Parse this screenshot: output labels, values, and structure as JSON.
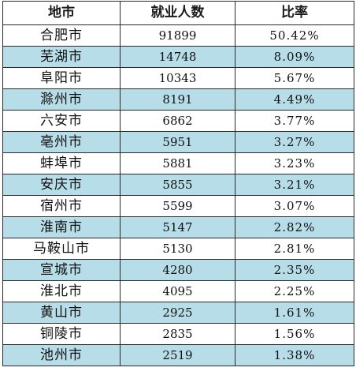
{
  "colors": {
    "header_bg": "#ffffff",
    "odd_row_bg": "#ffffff",
    "even_row_bg": "#b7dde8",
    "border": "#2a2a2a"
  },
  "header": {
    "city": "地市",
    "employed": "就业人数",
    "ratio": "比率"
  },
  "rows": [
    {
      "city": "合肥市",
      "employed": "91899",
      "ratio": "50.42%"
    },
    {
      "city": "芜湖市",
      "employed": "14748",
      "ratio": "8.09%"
    },
    {
      "city": "阜阳市",
      "employed": "10343",
      "ratio": "5.67%"
    },
    {
      "city": "滁州市",
      "employed": "8191",
      "ratio": "4.49%"
    },
    {
      "city": "六安市",
      "employed": "6862",
      "ratio": "3.77%"
    },
    {
      "city": "亳州市",
      "employed": "5951",
      "ratio": "3.27%"
    },
    {
      "city": "蚌埠市",
      "employed": "5881",
      "ratio": "3.23%"
    },
    {
      "city": "安庆市",
      "employed": "5855",
      "ratio": "3.21%"
    },
    {
      "city": "宿州市",
      "employed": "5599",
      "ratio": "3.07%"
    },
    {
      "city": "淮南市",
      "employed": "5147",
      "ratio": "2.82%"
    },
    {
      "city": "马鞍山市",
      "employed": "5130",
      "ratio": "2.81%"
    },
    {
      "city": "宣城市",
      "employed": "4280",
      "ratio": "2.35%"
    },
    {
      "city": "淮北市",
      "employed": "4095",
      "ratio": "2.25%"
    },
    {
      "city": "黄山市",
      "employed": "2925",
      "ratio": "1.61%"
    },
    {
      "city": "铜陵市",
      "employed": "2835",
      "ratio": "1.56%"
    },
    {
      "city": "池州市",
      "employed": "2519",
      "ratio": "1.38%"
    }
  ]
}
